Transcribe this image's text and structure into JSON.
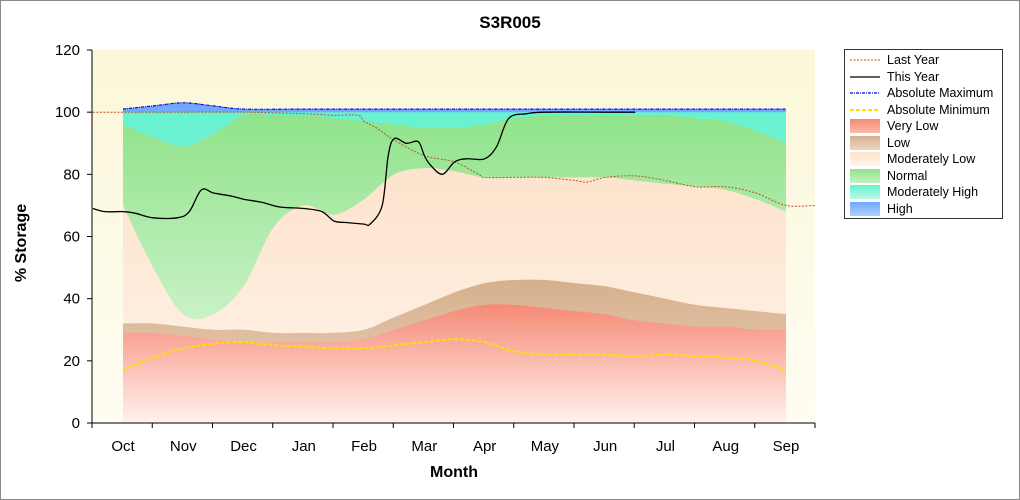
{
  "title": "S3R005",
  "colors": {
    "very_low": "#f68a76",
    "low": "#d6b08d",
    "moderately_low": "#fde3cc",
    "normal": "#8fe38a",
    "moderately_high": "#66f2d0",
    "high": "#6fa8ff",
    "last_year": "#c0522a",
    "this_year": "#000000",
    "absolute_maximum": "#0000cc",
    "absolute_minimum": "#ffe000"
  },
  "chart_data": {
    "type": "area",
    "title": "S3R005",
    "xlabel": "Month",
    "ylabel": "% Storage",
    "categories": [
      "Oct",
      "Nov",
      "Dec",
      "Jan",
      "Feb",
      "Mar",
      "Apr",
      "May",
      "Jun",
      "Jul",
      "Aug",
      "Sep"
    ],
    "ylim": [
      0,
      120
    ],
    "yticks": [
      0,
      20,
      40,
      60,
      80,
      100,
      120
    ],
    "grid": false,
    "legend_position": "right",
    "legend": [
      "Last Year",
      "This Year",
      "Absolute Maximum",
      "Absolute Minimum",
      "Very Low",
      "Low",
      "Moderately Low",
      "Normal",
      "Moderately High",
      "High"
    ],
    "bands": {
      "x": [
        0,
        0.5,
        1,
        1.5,
        2,
        2.5,
        3,
        3.5,
        4,
        4.5,
        5,
        5.5,
        6,
        6.5,
        7,
        7.5,
        8,
        8.5,
        9,
        9.5,
        10,
        10.5,
        11
      ],
      "very_low_top": [
        29,
        29,
        28,
        27,
        26,
        26,
        26,
        26,
        27,
        30,
        33,
        36,
        38,
        38,
        37,
        36,
        35,
        33,
        32,
        31,
        31,
        30,
        30
      ],
      "low_top": [
        32,
        32,
        31,
        30,
        30,
        29,
        29,
        29,
        30,
        34,
        38,
        42,
        45,
        46,
        46,
        45,
        44,
        42,
        40,
        38,
        37,
        36,
        35
      ],
      "moderately_low_top": [
        70,
        50,
        35,
        35,
        44,
        63,
        70,
        67,
        72,
        80,
        82,
        81,
        79,
        79,
        79,
        79,
        79,
        78,
        77,
        76,
        75,
        72,
        68
      ],
      "normal_top": [
        96,
        92,
        89,
        93,
        99,
        99,
        99,
        98,
        97,
        96,
        95,
        95,
        96,
        98,
        99,
        99,
        99,
        99,
        99,
        98,
        97,
        94,
        90
      ],
      "moderately_high_top": [
        100,
        100,
        100,
        100,
        100,
        100,
        100,
        100,
        100,
        100,
        100,
        100,
        100,
        100,
        100,
        100,
        100,
        100,
        100,
        100,
        100,
        100,
        100
      ],
      "high_top": [
        101,
        102,
        103,
        102,
        101,
        101,
        101,
        101,
        101,
        101,
        101,
        101,
        101,
        101,
        101,
        101,
        101,
        101,
        101,
        101,
        101,
        101,
        101
      ]
    },
    "series": [
      {
        "name": "Last Year",
        "x": [
          -0.5,
          0,
          1,
          2,
          3,
          3.5,
          3.9,
          4.0,
          4.2,
          4.5,
          5.0,
          5.5,
          5.9,
          6.0,
          6.5,
          7.0,
          7.5,
          7.7,
          8.0,
          8.5,
          9.0,
          9.5,
          10.0,
          10.5,
          11.0,
          11.5
        ],
        "values": [
          100,
          100,
          100,
          100,
          99.5,
          99,
          99,
          97,
          95,
          91,
          86,
          84,
          80,
          79,
          79,
          79,
          78,
          77.5,
          79,
          79.5,
          78,
          76,
          76,
          74,
          70,
          70
        ]
      },
      {
        "name": "This Year",
        "x": [
          -0.5,
          -0.3,
          0,
          0.2,
          0.5,
          0.9,
          1.1,
          1.3,
          1.5,
          1.8,
          2.0,
          2.3,
          2.6,
          3.0,
          3.3,
          3.5,
          3.7,
          4.0,
          4.1,
          4.3,
          4.4,
          4.5,
          4.7,
          4.9,
          5.0,
          5.1,
          5.3,
          5.5,
          5.7,
          6.0,
          6.2,
          6.4,
          6.7,
          7.0,
          8.0,
          8.5
        ],
        "values": [
          69,
          68,
          68,
          67.5,
          66,
          66,
          68,
          75,
          74,
          73,
          72,
          71,
          69.5,
          69,
          68,
          65,
          64.5,
          64,
          64,
          70,
          86,
          91.5,
          90,
          90.5,
          86,
          83,
          80,
          84,
          85,
          85,
          89,
          98,
          99.5,
          100,
          100,
          100
        ]
      },
      {
        "name": "Absolute Maximum",
        "x": [
          0,
          0.5,
          1,
          1.5,
          2,
          3,
          4,
          5,
          6,
          7,
          8,
          9,
          10,
          11
        ],
        "values": [
          101,
          102,
          103,
          102,
          101,
          101,
          101,
          101,
          101,
          101,
          101,
          101,
          101,
          101
        ]
      },
      {
        "name": "Absolute Minimum",
        "x": [
          0,
          0.5,
          1,
          1.5,
          2,
          2.5,
          3,
          3.5,
          4,
          4.5,
          5,
          5.5,
          6,
          6.5,
          7,
          7.5,
          8,
          8.5,
          9,
          9.5,
          10,
          10.5,
          11
        ],
        "values": [
          17,
          21,
          24,
          25.5,
          26,
          25,
          24.5,
          24,
          24,
          25,
          26,
          27,
          26,
          23,
          22,
          22,
          22,
          21.5,
          22,
          21.5,
          21,
          20,
          17
        ]
      }
    ]
  }
}
